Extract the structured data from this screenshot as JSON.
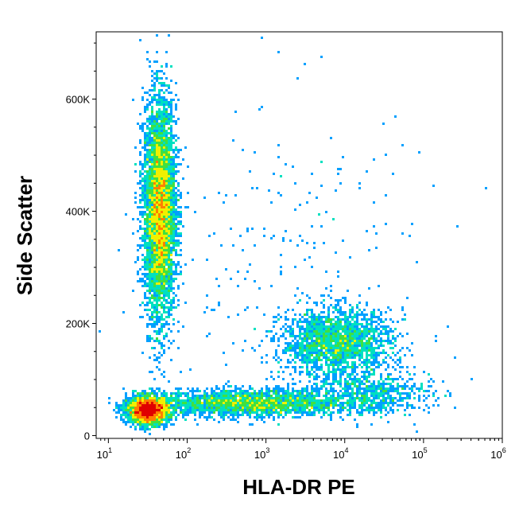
{
  "chart_data": {
    "type": "scatter",
    "subtype": "flow-cytometry-density-dot-plot",
    "title": "",
    "xlabel": "HLA-DR PE",
    "ylabel": "Side Scatter",
    "x_scale": "log",
    "xlim": [
      7,
      1000000
    ],
    "ylim": [
      -5000,
      720000
    ],
    "x_ticks": [
      {
        "value": 10,
        "base": "10",
        "exp": "1"
      },
      {
        "value": 100,
        "base": "10",
        "exp": "2"
      },
      {
        "value": 1000,
        "base": "10",
        "exp": "3"
      },
      {
        "value": 10000,
        "base": "10",
        "exp": "4"
      },
      {
        "value": 100000,
        "base": "10",
        "exp": "5"
      },
      {
        "value": 1000000,
        "base": "10",
        "exp": "6"
      }
    ],
    "y_ticks": [
      {
        "value": 0,
        "label": "0"
      },
      {
        "value": 200000,
        "label": "200K"
      },
      {
        "value": 400000,
        "label": "400K"
      },
      {
        "value": 600000,
        "label": "600K"
      }
    ],
    "density_colors": [
      "#0000d8",
      "#00a0ff",
      "#00e0c0",
      "#40e040",
      "#f0f000",
      "#ff8000",
      "#e00000"
    ],
    "populations": [
      {
        "x_center": 45,
        "y_center": 400000,
        "x_spread_log": 0.1,
        "y_spread": 95000,
        "count": 5200
      },
      {
        "x_center": 32,
        "y_center": 45000,
        "x_spread_log": 0.13,
        "y_spread": 12000,
        "count": 2600
      },
      {
        "x_center": 600,
        "y_center": 58000,
        "x_spread_log": 0.6,
        "y_spread": 12000,
        "count": 2200
      },
      {
        "x_center": 8000,
        "y_center": 165000,
        "x_spread_log": 0.35,
        "y_spread": 30000,
        "count": 2000
      },
      {
        "x_center": 20000,
        "y_center": 75000,
        "x_spread_log": 0.4,
        "y_spread": 20000,
        "count": 700
      },
      {
        "x_center": 2000,
        "y_center": 300000,
        "x_spread_log": 0.9,
        "y_spread": 160000,
        "count": 250
      }
    ],
    "grid": false,
    "legend": "none"
  }
}
